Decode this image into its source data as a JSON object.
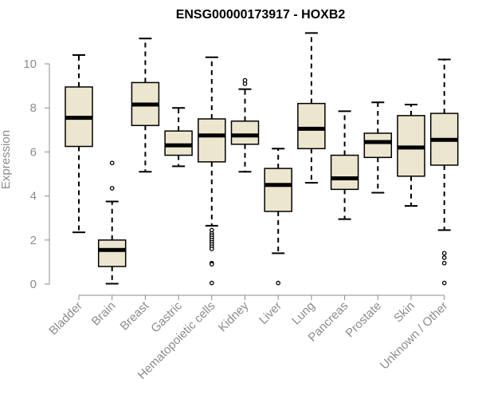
{
  "chart_data": {
    "type": "box",
    "title": "ENSG00000173917 - HOXB2",
    "xlabel": "",
    "ylabel": "Expression",
    "ylim": [
      0,
      10.3
    ],
    "yticks": [
      0,
      2,
      4,
      6,
      8,
      10
    ],
    "box_fill": "#ede6cf",
    "box_stroke": "#000000",
    "axis_color": "#8c8c8c",
    "categories": [
      "Bladder",
      "Brain",
      "Breast",
      "Gastric",
      "Hematopoietic cells",
      "Kidney",
      "Liver",
      "Lung",
      "Pancreas",
      "Prostate",
      "Skin",
      "Unknown / Other"
    ],
    "boxes": [
      {
        "name": "Bladder",
        "whislo": 2.35,
        "q1": 6.25,
        "med": 7.55,
        "q3": 8.95,
        "whishi": 10.4,
        "fliers": []
      },
      {
        "name": "Brain",
        "whislo": 0.02,
        "q1": 0.8,
        "med": 1.55,
        "q3": 2.0,
        "whishi": 3.75,
        "fliers": [
          4.35,
          5.5
        ]
      },
      {
        "name": "Breast",
        "whislo": 5.1,
        "q1": 7.2,
        "med": 8.15,
        "q3": 9.15,
        "whishi": 11.15,
        "fliers": []
      },
      {
        "name": "Gastric",
        "whislo": 5.35,
        "q1": 5.85,
        "med": 6.3,
        "q3": 6.95,
        "whishi": 8.0,
        "fliers": []
      },
      {
        "name": "Hematopoietic cells",
        "whislo": 2.65,
        "q1": 5.55,
        "med": 6.75,
        "q3": 7.5,
        "whishi": 10.3,
        "fliers": [
          2.45,
          2.3,
          2.2,
          2.1,
          2.0,
          1.9,
          1.8,
          1.7,
          1.6,
          0.95,
          0.9,
          0.05
        ]
      },
      {
        "name": "Kidney",
        "whislo": 5.1,
        "q1": 6.35,
        "med": 6.75,
        "q3": 7.4,
        "whishi": 8.85,
        "fliers": [
          9.1,
          9.25
        ]
      },
      {
        "name": "Liver",
        "whislo": 1.4,
        "q1": 3.3,
        "med": 4.5,
        "q3": 5.25,
        "whishi": 6.15,
        "fliers": [
          0.05
        ]
      },
      {
        "name": "Lung",
        "whislo": 4.6,
        "q1": 6.15,
        "med": 7.05,
        "q3": 8.2,
        "whishi": 11.4,
        "fliers": []
      },
      {
        "name": "Pancreas",
        "whislo": 2.95,
        "q1": 4.3,
        "med": 4.8,
        "q3": 5.85,
        "whishi": 7.85,
        "fliers": []
      },
      {
        "name": "Prostate",
        "whislo": 4.15,
        "q1": 5.75,
        "med": 6.45,
        "q3": 6.85,
        "whishi": 8.25,
        "fliers": []
      },
      {
        "name": "Skin",
        "whislo": 3.55,
        "q1": 4.9,
        "med": 6.2,
        "q3": 7.65,
        "whishi": 8.15,
        "fliers": []
      },
      {
        "name": "Unknown / Other",
        "whislo": 2.45,
        "q1": 5.4,
        "med": 6.55,
        "q3": 7.75,
        "whishi": 10.2,
        "fliers": [
          1.4,
          1.2,
          0.95,
          0.05
        ]
      }
    ]
  }
}
